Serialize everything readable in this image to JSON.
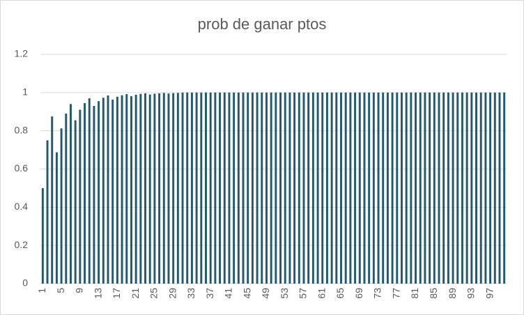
{
  "chart_data": {
    "type": "bar",
    "title": "prob de ganar ptos",
    "categories": [
      "1",
      null,
      null,
      null,
      "5",
      null,
      null,
      null,
      "9",
      null,
      null,
      null,
      "13",
      null,
      null,
      null,
      "17",
      null,
      null,
      null,
      "21",
      null,
      null,
      null,
      "25",
      null,
      null,
      null,
      "29",
      null,
      null,
      null,
      "33",
      null,
      null,
      null,
      "37",
      null,
      null,
      null,
      "41",
      null,
      null,
      null,
      "45",
      null,
      null,
      null,
      "49",
      null,
      null,
      null,
      "53",
      null,
      null,
      null,
      "57",
      null,
      null,
      null,
      "61",
      null,
      null,
      null,
      "65",
      null,
      null,
      null,
      "69",
      null,
      null,
      null,
      "73",
      null,
      null,
      null,
      "77",
      null,
      null,
      null,
      "81",
      null,
      null,
      null,
      "85",
      null,
      null,
      null,
      "89",
      null,
      null,
      null,
      "93",
      null,
      null,
      null,
      "97",
      null,
      null,
      null
    ],
    "values": [
      0.5,
      0.75,
      0.875,
      0.6875,
      0.8125,
      0.89,
      0.94,
      0.855,
      0.91,
      0.945,
      0.97,
      0.93,
      0.955,
      0.973,
      0.985,
      0.963,
      0.978,
      0.986,
      0.992,
      0.981,
      0.989,
      0.993,
      0.996,
      0.99,
      0.994,
      0.996,
      0.998,
      0.995,
      0.997,
      0.998,
      1,
      1,
      1,
      1,
      1,
      1,
      1,
      1,
      1,
      1,
      1,
      1,
      1,
      1,
      1,
      1,
      1,
      1,
      1,
      1,
      1,
      1,
      1,
      1,
      1,
      1,
      1,
      1,
      1,
      1,
      1,
      1,
      1,
      1,
      1,
      1,
      1,
      1,
      1,
      1,
      1,
      1,
      1,
      1,
      1,
      1,
      1,
      1,
      1,
      1,
      1,
      1,
      1,
      1,
      1,
      1,
      1,
      1,
      1,
      1,
      1,
      1,
      1,
      1,
      1,
      1,
      1,
      1,
      1,
      1
    ],
    "color": "#1f5a6e",
    "ylim": [
      0,
      1.2
    ],
    "yticks": [
      0,
      0.2,
      0.4,
      0.6,
      0.8,
      1,
      1.2
    ],
    "grid": true
  }
}
